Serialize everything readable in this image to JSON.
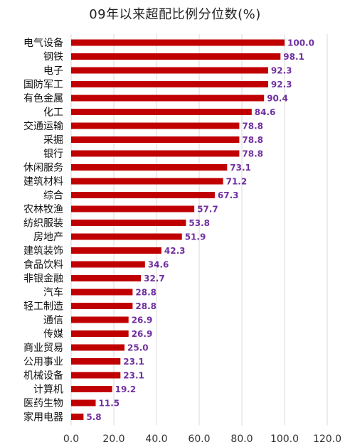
{
  "chart_data": {
    "type": "bar",
    "orientation": "horizontal",
    "title": "09年以来超配比例分位数(%)",
    "categories": [
      "电气设备",
      "钢铁",
      "电子",
      "国防军工",
      "有色金属",
      "化工",
      "交通运输",
      "采掘",
      "银行",
      "休闲服务",
      "建筑材料",
      "综合",
      "农林牧渔",
      "纺织服装",
      "房地产",
      "建筑装饰",
      "食品饮料",
      "非银金融",
      "汽车",
      "轻工制造",
      "通信",
      "传媒",
      "商业贸易",
      "公用事业",
      "机械设备",
      "计算机",
      "医药生物",
      "家用电器"
    ],
    "values": [
      100.0,
      98.1,
      92.3,
      92.3,
      90.4,
      84.6,
      78.8,
      78.8,
      78.8,
      73.1,
      71.2,
      67.3,
      57.7,
      53.8,
      51.9,
      42.3,
      34.6,
      32.7,
      28.8,
      28.8,
      26.9,
      26.9,
      25.0,
      23.1,
      23.1,
      19.2,
      11.5,
      5.8
    ],
    "value_labels": [
      "100.0",
      "98.1",
      "92.3",
      "92.3",
      "90.4",
      "84.6",
      "78.8",
      "78.8",
      "78.8",
      "73.1",
      "71.2",
      "67.3",
      "57.7",
      "53.8",
      "51.9",
      "42.3",
      "34.6",
      "32.7",
      "28.8",
      "28.8",
      "26.9",
      "26.9",
      "25.0",
      "23.1",
      "23.1",
      "19.2",
      "11.5",
      "5.8"
    ],
    "xlim": [
      0,
      120
    ],
    "xticks": [
      "0.0",
      "20.0",
      "40.0",
      "60.0",
      "80.0",
      "100.0",
      "120.0"
    ],
    "grid": "vertical",
    "legend": "none",
    "bar_color": "#c00000",
    "label_color": "#7030a0"
  }
}
